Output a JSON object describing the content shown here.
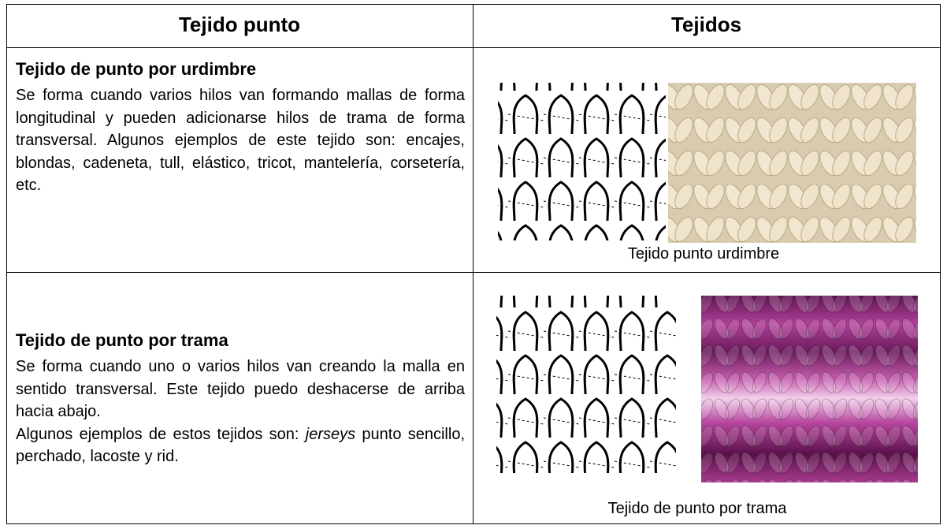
{
  "table": {
    "header": [
      "Tejido punto",
      "Tejidos"
    ],
    "rows": [
      {
        "title": "Tejido de punto por urdimbre",
        "body": [
          "Se forma cuando varios hilos van formando mallas de forma longitudinal y pueden adicionarse hilos de trama de forma transversal. Algunos ejemplos de este tejido son: encajes, blondas, cadeneta, tull, elástico, tricot, mantelería, corsetería, etc."
        ],
        "caption": "Tejido punto urdimbre"
      },
      {
        "title": "Tejido de punto por trama",
        "body": [
          "Se forma cuando uno o varios hilos van creando la malla en sentido transversal. Este tejido puedo deshacerse de arriba hacia abajo.",
          "Algunos ejemplos de estos tejidos son: ",
          "jerseys",
          " punto sencillo, perchado, lacoste y rid."
        ],
        "caption": "Tejido de punto por trama"
      }
    ]
  }
}
